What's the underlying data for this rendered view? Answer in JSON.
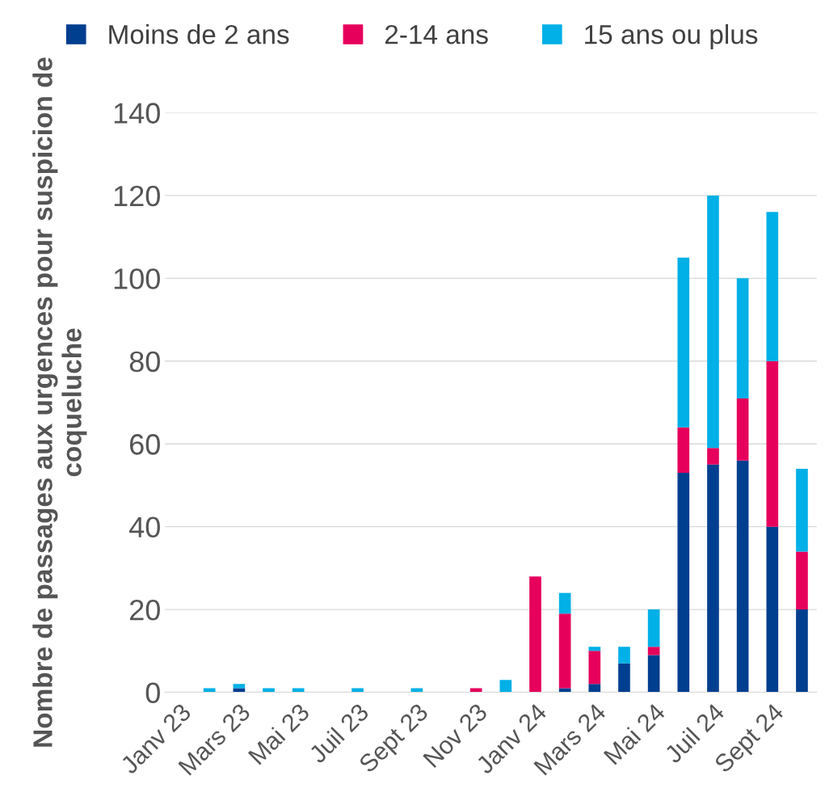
{
  "chart_data": {
    "type": "bar",
    "stacked": true,
    "ylabel": "Nombre de passages aux urgences pour suspicion de coqueluche",
    "categories": [
      "Janv 23",
      null,
      "Mars 23",
      null,
      "Mai 23",
      null,
      "Juil 23",
      null,
      "Sept 23",
      null,
      "Nov 23",
      null,
      "Janv 24",
      null,
      "Mars 24",
      null,
      "Mai 24",
      null,
      "Juil 24",
      null,
      "Sept 24",
      null
    ],
    "series": [
      {
        "name": "Moins de 2 ans",
        "color": "#003e8f",
        "values": [
          0,
          0,
          1,
          0,
          0,
          0,
          0,
          0,
          0,
          0,
          0,
          0,
          0,
          1,
          2,
          7,
          9,
          53,
          55,
          56,
          40,
          20
        ]
      },
      {
        "name": "2-14 ans",
        "color": "#e6005c",
        "values": [
          0,
          0,
          0,
          0,
          0,
          0,
          0,
          0,
          0,
          0,
          1,
          0,
          28,
          18,
          8,
          0,
          2,
          11,
          4,
          15,
          40,
          14
        ]
      },
      {
        "name": "15 ans ou plus",
        "color": "#00b0e6",
        "values": [
          0,
          1,
          1,
          1,
          1,
          0,
          1,
          0,
          1,
          0,
          0,
          3,
          0,
          5,
          1,
          4,
          9,
          41,
          61,
          29,
          36,
          20
        ]
      }
    ],
    "ylim": [
      0,
      140
    ],
    "yticks": [
      0,
      20,
      40,
      60,
      80,
      100,
      120,
      140
    ],
    "grid": "y",
    "legend": "top"
  }
}
